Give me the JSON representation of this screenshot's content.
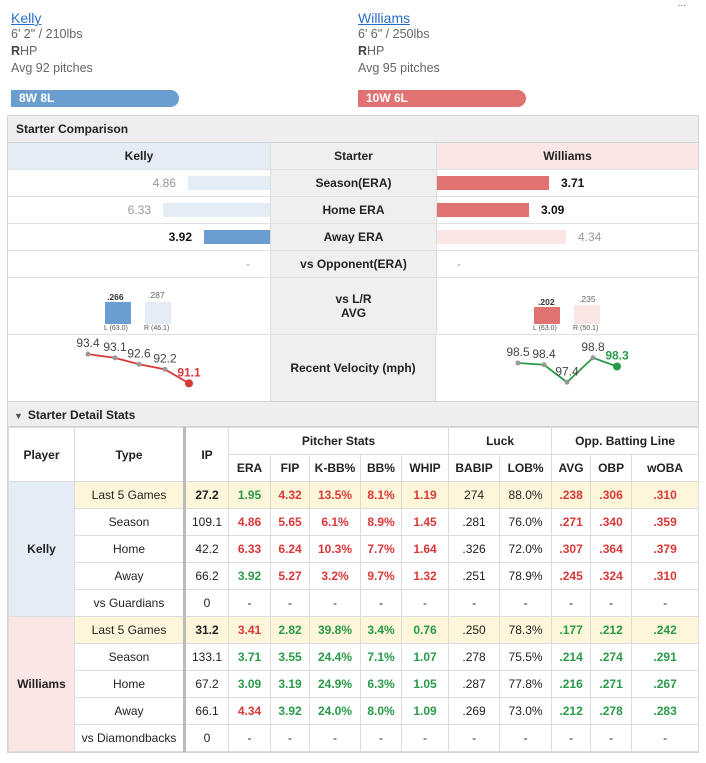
{
  "corner": "...",
  "away": {
    "name": "Kelly",
    "height_weight": "6' 2\" / 210lbs",
    "throws_bold": "R",
    "throws_rest": "HP",
    "avg_pitches": "Avg 92 pitches",
    "record": "8W 8L",
    "color": "#6a9ed0"
  },
  "home": {
    "name": "Williams",
    "height_weight": "6' 6\" / 250lbs",
    "throws_bold": "R",
    "throws_rest": "HP",
    "avg_pitches": "Avg 95 pitches",
    "record": "10W 6L",
    "color": "#e07272"
  },
  "comparison": {
    "title": "Starter Comparison",
    "header": {
      "left": "Kelly",
      "mid": "Starter",
      "right": "Williams"
    },
    "rows": [
      {
        "label": "Season(ERA)",
        "left": "4.86",
        "right": "3.71",
        "left_win": false,
        "right_win": true,
        "left_frac": 0.48,
        "right_frac": 0.4
      },
      {
        "label": "Home ERA",
        "left": "6.33",
        "right": "3.09",
        "left_win": false,
        "right_win": true,
        "left_frac": 0.63,
        "right_frac": 0.33
      },
      {
        "label": "Away ERA",
        "left": "3.92",
        "right": "4.34",
        "left_win": true,
        "right_win": false,
        "left_frac": 0.39,
        "right_frac": 0.46
      },
      {
        "label": "vs Opponent(ERA)",
        "left": "-",
        "right": "-",
        "left_win": false,
        "right_win": false,
        "left_frac": 0,
        "right_frac": 0
      }
    ],
    "split": {
      "label_line1": "vs L/R",
      "label_line2": "AVG",
      "left": {
        "l_val": ".266",
        "r_val": ".287",
        "l_lbl": "L (63.0)",
        "r_lbl": "R (46.1)"
      },
      "right": {
        "l_val": ".202",
        "r_val": ".235",
        "l_lbl": "L (63.0)",
        "r_lbl": "R (50.1)"
      }
    },
    "velocity": {
      "label": "Recent Velocity (mph)",
      "left": [
        "93.4",
        "93.1",
        "92.6",
        "92.2",
        "91.1"
      ],
      "right": [
        "98.5",
        "98.4",
        "97.4",
        "98.8",
        "98.3"
      ],
      "left_values": [
        93.4,
        93.1,
        92.6,
        92.2,
        91.1
      ],
      "right_values": [
        98.5,
        98.4,
        97.4,
        98.8,
        98.3
      ]
    }
  },
  "detail": {
    "title": "Starter Detail Stats",
    "headers": {
      "player": "Player",
      "type": "Type",
      "ip": "IP",
      "group_pitcher": "Pitcher Stats",
      "group_luck": "Luck",
      "group_opp": "Opp. Batting Line",
      "cols": [
        "ERA",
        "FIP",
        "K-BB%",
        "BB%",
        "WHIP",
        "BABIP",
        "LOB%",
        "AVG",
        "OBP",
        "wOBA"
      ]
    },
    "players": [
      {
        "name": "Kelly",
        "rows": [
          {
            "type": "Last 5 Games",
            "ip": "27.2",
            "vals": [
              "1.95",
              "4.32",
              "13.5%",
              "8.1%",
              "1.19",
              "274",
              "88.0%",
              ".238",
              ".306",
              ".310"
            ],
            "cls": [
              "g",
              "r",
              "r",
              "r",
              "r",
              "dk",
              "dk",
              "r",
              "r",
              "r"
            ]
          },
          {
            "type": "Season",
            "ip": "109.1",
            "vals": [
              "4.86",
              "5.65",
              "6.1%",
              "8.9%",
              "1.45",
              ".281",
              "76.0%",
              ".271",
              ".340",
              ".359"
            ],
            "cls": [
              "r",
              "r",
              "r",
              "r",
              "r",
              "dk",
              "dk",
              "r",
              "r",
              "r"
            ]
          },
          {
            "type": "Home",
            "ip": "42.2",
            "vals": [
              "6.33",
              "6.24",
              "10.3%",
              "7.7%",
              "1.64",
              ".326",
              "72.0%",
              ".307",
              ".364",
              ".379"
            ],
            "cls": [
              "r",
              "r",
              "r",
              "r",
              "r",
              "dk",
              "dk",
              "r",
              "r",
              "r"
            ]
          },
          {
            "type": "Away",
            "ip": "66.2",
            "vals": [
              "3.92",
              "5.27",
              "3.2%",
              "9.7%",
              "1.32",
              ".251",
              "78.9%",
              ".245",
              ".324",
              ".310"
            ],
            "cls": [
              "g",
              "r",
              "r",
              "r",
              "r",
              "dk",
              "dk",
              "r",
              "r",
              "r"
            ]
          },
          {
            "type": "vs Guardians",
            "ip": "0",
            "vals": [
              "-",
              "-",
              "-",
              "-",
              "-",
              "-",
              "-",
              "-",
              "-",
              "-"
            ],
            "cls": [
              "dk",
              "dk",
              "dk",
              "dk",
              "dk",
              "dk",
              "dk",
              "dk",
              "dk",
              "dk"
            ]
          }
        ]
      },
      {
        "name": "Williams",
        "rows": [
          {
            "type": "Last 5 Games",
            "ip": "31.2",
            "vals": [
              "3.41",
              "2.82",
              "39.8%",
              "3.4%",
              "0.76",
              ".250",
              "78.3%",
              ".177",
              ".212",
              ".242"
            ],
            "cls": [
              "r",
              "g",
              "g",
              "g",
              "g",
              "dk",
              "dk",
              "g",
              "g",
              "g"
            ]
          },
          {
            "type": "Season",
            "ip": "133.1",
            "vals": [
              "3.71",
              "3.55",
              "24.4%",
              "7.1%",
              "1.07",
              ".278",
              "75.5%",
              ".214",
              ".274",
              ".291"
            ],
            "cls": [
              "g",
              "g",
              "g",
              "g",
              "g",
              "dk",
              "dk",
              "g",
              "g",
              "g"
            ]
          },
          {
            "type": "Home",
            "ip": "67.2",
            "vals": [
              "3.09",
              "3.19",
              "24.9%",
              "6.3%",
              "1.05",
              ".287",
              "77.8%",
              ".216",
              ".271",
              ".267"
            ],
            "cls": [
              "g",
              "g",
              "g",
              "g",
              "g",
              "dk",
              "dk",
              "g",
              "g",
              "g"
            ]
          },
          {
            "type": "Away",
            "ip": "66.1",
            "vals": [
              "4.34",
              "3.92",
              "24.0%",
              "8.0%",
              "1.09",
              ".269",
              "73.0%",
              ".212",
              ".278",
              ".283"
            ],
            "cls": [
              "r",
              "g",
              "g",
              "g",
              "g",
              "dk",
              "dk",
              "g",
              "g",
              "g"
            ]
          },
          {
            "type": "vs Diamondbacks",
            "ip": "0",
            "vals": [
              "-",
              "-",
              "-",
              "-",
              "-",
              "-",
              "-",
              "-",
              "-",
              "-"
            ],
            "cls": [
              "dk",
              "dk",
              "dk",
              "dk",
              "dk",
              "dk",
              "dk",
              "dk",
              "dk",
              "dk"
            ]
          }
        ]
      }
    ]
  }
}
